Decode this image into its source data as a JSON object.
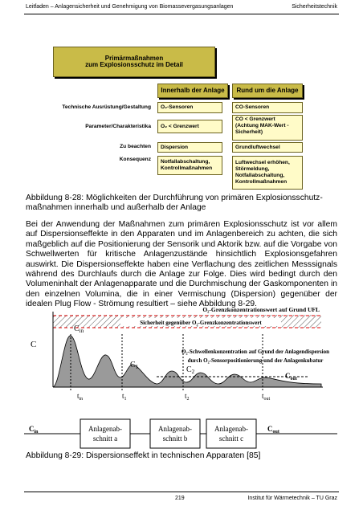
{
  "header": {
    "left": "Leitfaden – Anlagensicherheit und Genehmigung von Biomassevergasungsanlagen",
    "right": "Sicherheitstechnik"
  },
  "figure_1": {
    "title": [
      "Primärmaßnahmen",
      "zum Explosionsschutz im Detail"
    ],
    "columns": [
      "Innerhalb der Anlage",
      "Rund um die Anlage"
    ],
    "rows": [
      {
        "label": "Technische Ausrüstung/Gestaltung",
        "inside": [
          "O₂-Sensoren"
        ],
        "outside": [
          "CO-Sensoren"
        ]
      },
      {
        "label": "Parameter/Charakteristika",
        "inside": [
          "O₂ < Grenzwert"
        ],
        "outside": [
          "CO < Grenzwert",
          "(Achtung MAK-Wert -",
          "Sicherheit)"
        ]
      },
      {
        "label": "Zu beachten",
        "inside": [
          "Dispersion"
        ],
        "outside": [
          "Grundluftwechsel"
        ]
      },
      {
        "label": "Konsequenz",
        "inside": [
          "Notfallabschaltung,",
          "Kontrollmaßnahmen"
        ],
        "outside": [
          "Luftwechsel erhöhen,",
          "Störmeldung,",
          "Notfallabschaltung,",
          "Kontrollmaßnahmen"
        ]
      }
    ],
    "caption": [
      "Abbildung 8-28: Möglichkeiten der Durchführung von primären Explosionsschutz-",
      "maßnahmen innerhalb und außerhalb der Anlage"
    ]
  },
  "paragraph": "Bei der Anwendung der Maßnahmen zum primären Explosionsschutz ist vor allem auf Dispersionseffekte in den Apparaten und im Anlagenbereich zu achten, die sich maßgeblich auf die Positionierung der Sensorik und Aktorik bzw. auf die Vorgabe von Schwellwerten für kritische Anlagenzustände hinsichtlich Explosionsgefahren auswirkt. Die Dispersionseffekte haben eine Verflachung des zeitlichen Messsignals während des Durchlaufs durch die Anlage zur Folge. Dies wird bedingt durch den Volumeninhalt der Anlagenapparate und die Durchmischung der Gaskomponenten in den einzelnen Volumina, die in einer Vermischung (Dispersion) gegenüber der idealen Plug Flow - Strömung resultiert – siehe Abbildung 8-29.",
  "figure_2": {
    "limit_label": "O₂-Grenzkonzentrationswert auf Grund UFL",
    "safety_label": "Sicherheit gegenüber O₂-Grenzkonzentrationswert",
    "y_axis_label": "C",
    "threshold_label": [
      "O₂-Schwellenkonzentration auf Grund der Anlagendispersion",
      "durch O₂-Sensorpositionierung und der Anlagenkubatur"
    ],
    "concentrations": {
      "c_in": {
        "base": "C",
        "sub": "in"
      },
      "c_1": {
        "base": "C",
        "sub": "1"
      },
      "c_2": {
        "base": "C",
        "sub": "2"
      },
      "c_out": {
        "base": "C",
        "sub": "out"
      }
    },
    "times": {
      "t_in": {
        "base": "t",
        "sub": "in"
      },
      "t_1": {
        "base": "t",
        "sub": "1"
      },
      "t_2": {
        "base": "t",
        "sub": "2"
      },
      "t_out": {
        "base": "t",
        "sub": "out"
      }
    },
    "sections": [
      [
        "Anlagenab-",
        "schnitt a"
      ],
      [
        "Anlagenab-",
        "schnitt b"
      ],
      [
        "Anlagenab-",
        "schnitt c"
      ]
    ],
    "flow_in": {
      "base": "C",
      "sub": "in"
    },
    "flow_out": {
      "base": "C",
      "sub": "out"
    },
    "caption": "Abbildung 8-29: Dispersionseffekt in technischen Apparaten [85]"
  },
  "footer": {
    "page": "219",
    "institute": "Institut für Wärmetechnik – TU Graz"
  }
}
